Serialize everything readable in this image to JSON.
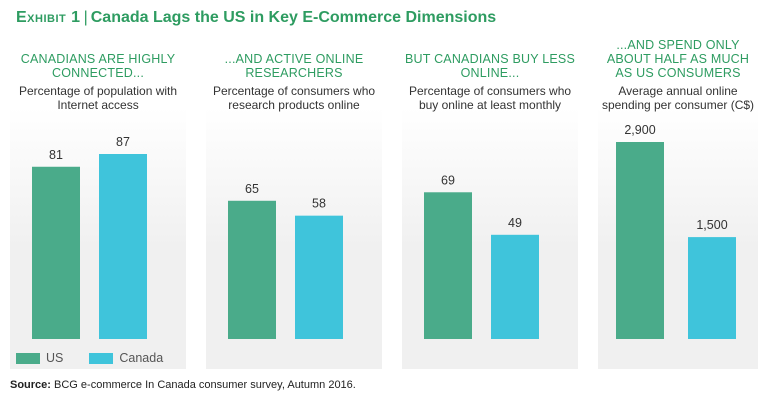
{
  "title": {
    "exhibit": "Exhibit 1",
    "text": "Canada Lags the US in Key E-Commerce Dimensions"
  },
  "colors": {
    "us": "#4aab8a",
    "canada": "#3fc4db",
    "panel_bg": "#f0f0f0",
    "accent": "#2e9c61"
  },
  "legend": {
    "us": "US",
    "canada": "Canada"
  },
  "source": {
    "label": "Source:",
    "text": " BCG e-commerce In Canada consumer survey, Autumn 2016."
  },
  "chart_data": [
    {
      "type": "bar",
      "title": "CANADIANS ARE HIGHLY CONNECTED...",
      "subtitle": "Percentage of population with Internet access",
      "categories": [
        "US",
        "Canada"
      ],
      "values": [
        81,
        87
      ],
      "value_labels": [
        "81",
        "87"
      ]
    },
    {
      "type": "bar",
      "title": "...AND ACTIVE ONLINE RESEARCHERS",
      "subtitle": "Percentage of consumers who research products online",
      "categories": [
        "US",
        "Canada"
      ],
      "values": [
        65,
        58
      ],
      "value_labels": [
        "65",
        "58"
      ]
    },
    {
      "type": "bar",
      "title": "BUT CANADIANS BUY LESS ONLINE...",
      "subtitle": "Percentage of consumers who buy online at least monthly",
      "categories": [
        "US",
        "Canada"
      ],
      "values": [
        69,
        49
      ],
      "value_labels": [
        "69",
        "49"
      ]
    },
    {
      "type": "bar",
      "title": "...AND SPEND ONLY ABOUT HALF AS MUCH AS US CONSUMERS",
      "subtitle": "Average annual online spending per consumer (C$)",
      "categories": [
        "US",
        "Canada"
      ],
      "values": [
        2900,
        1500
      ],
      "value_labels": [
        "2,900",
        "1,500"
      ]
    }
  ]
}
